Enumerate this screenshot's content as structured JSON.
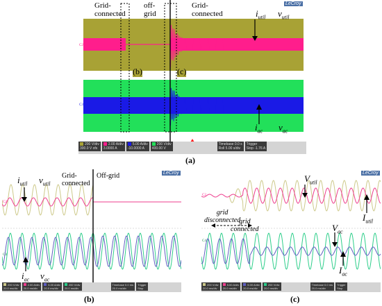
{
  "colors": {
    "olive": "#a8a235",
    "magenta": "#ff1e8c",
    "green": "#22e05a",
    "blue": "#1a1ae6",
    "yellow_trace": "#cdc98a",
    "pink_trace": "#ee3e8e",
    "cyan_green_trace": "#2cce8a",
    "purple_trace": "#5e5ec0"
  },
  "brand": "LeCroy",
  "panel_a": {
    "caption": "(a)",
    "label_grid_connected_1": "Grid-\nconnected",
    "label_off_grid": "off-\ngrid",
    "label_grid_connected_2": "Grid-\nconnected",
    "box_b": "(b)",
    "box_c": "(c)",
    "i_util": "i",
    "i_util_sub": "util",
    "v_util": "v",
    "v_util_sub": "util",
    "i_ac": "i",
    "i_ac_sub": "ac",
    "v_ac": "v",
    "v_ac_sub": "ac",
    "status": {
      "c1": [
        "200 V/div",
        "300.0 V ofs"
      ],
      "c2": [
        "2.00 A/div",
        "3.0000 A"
      ],
      "c3": [
        "5.00 A/div",
        "-10.0000 A"
      ],
      "c4": [
        "200 V/div",
        "400.00 V"
      ],
      "timebase": [
        "Timebase 0.0 s",
        "Roll 5.00 s/div",
        "1.00 MS 20 kS/s"
      ],
      "trigger": [
        "Trigger",
        "Stop -1.76 A",
        "Edge Negative"
      ]
    }
  },
  "panel_b": {
    "caption": "(b)",
    "i_util": "i",
    "i_util_sub": "util",
    "v_util": "v",
    "v_util_sub": "util",
    "grid_connected": "Grid-\nconnected",
    "off_grid": "Off-grid",
    "i_ac": "i",
    "i_ac_sub": "ac",
    "v_ac": "v",
    "v_ac_sub": "ac",
    "status": {
      "c1": [
        "200 V/div",
        "20.0 ms/div"
      ],
      "c2": [
        "2.00 A/div",
        "20.0 ms/div"
      ],
      "c3": [
        "5.00 A/div",
        "20.0 ms/div"
      ],
      "c4": [
        "200 V/div",
        "20.0 ms/div"
      ],
      "timebase": [
        "Timebase 0.0 ms",
        "20.0 ms/div",
        "10 MS 500 kS/s"
      ],
      "trigger": [
        "Trigger",
        "Stop",
        "Edge Negative"
      ]
    }
  },
  "panel_c": {
    "caption": "(c)",
    "V_util": "V",
    "V_util_sub": "util",
    "grid_disconnected": "grid\ndisconnected",
    "grid_connected": "grid\nconnected",
    "V_ac": "V",
    "V_ac_sub": "ac",
    "I_util": "I",
    "I_util_sub": "util",
    "I_ac": "I",
    "I_ac_sub": "ac",
    "status": {
      "c1": [
        "200 V/div",
        "20.0 ms/div"
      ],
      "c2": [
        "5.00 A/div",
        "20.0 ms/div"
      ],
      "c3": [
        "5.00 A/div",
        "20.0 ms/div"
      ],
      "c4": [
        "200 V/div",
        "20.0 ms/div"
      ],
      "timebase": [
        "Timebase 0.0 ms",
        "20.0 ms/div",
        "1.00 MS 5 MS/s"
      ],
      "trigger": [
        "Trigger",
        "Stop",
        "Edge Negative"
      ]
    }
  }
}
